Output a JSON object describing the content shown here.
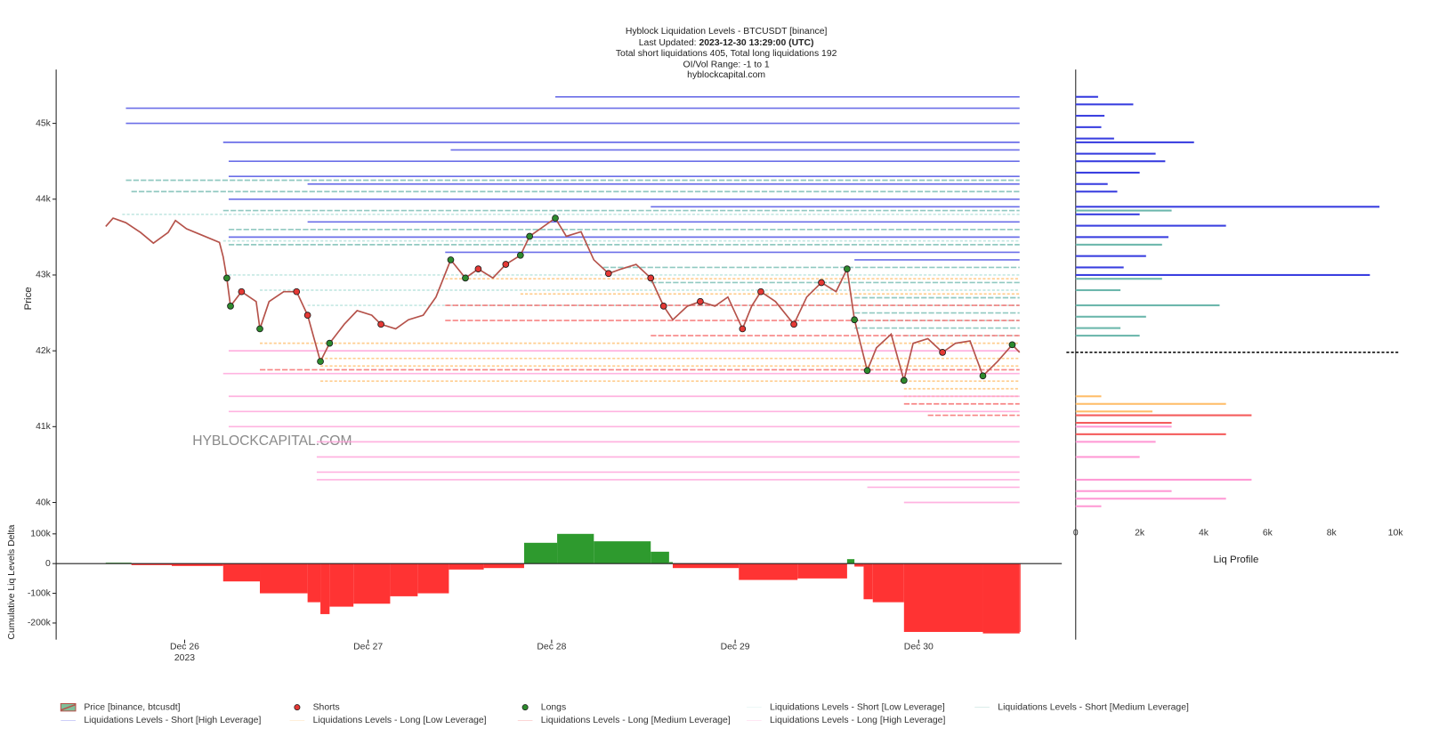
{
  "chart_data": [
    {
      "type": "liquidation",
      "title": "Hyblock Liquidation Levels - BTCUSDT [binance]",
      "updated_label": "Last Updated:",
      "updated": "2023-12-30 13:29:00 (UTC)",
      "subtitle": "Total short liquidations 405, Total long liquidations 192",
      "range_note": "OI/Vol Range: -1 to 1",
      "source": "hyblockcapital.com",
      "watermark": "HYBLOCKCAPITAL.COM",
      "y_label": "Price",
      "xlim": [
        25.3,
        30.78
      ],
      "xticks": [
        {
          "value": 26,
          "label": "Dec 26"
        },
        {
          "value": 27,
          "label": "Dec 27"
        },
        {
          "value": 28,
          "label": "Dec 28"
        },
        {
          "value": 29,
          "label": "Dec 29"
        },
        {
          "value": 30,
          "label": "Dec 30"
        }
      ],
      "xtick_sublabel": "2023",
      "ylim": [
        39780,
        45710
      ],
      "yticks": [
        {
          "value": 40000,
          "label": "40k"
        },
        {
          "value": 41000,
          "label": "41k"
        },
        {
          "value": 42000,
          "label": "42k"
        },
        {
          "value": 43000,
          "label": "43k"
        },
        {
          "value": 44000,
          "label": "44k"
        },
        {
          "value": 45000,
          "label": "45k"
        }
      ],
      "series": [
        {
          "name": "Price [binance, btcusdt]",
          "color": "#b5524a",
          "x": [
            25.57,
            25.61,
            25.68,
            25.76,
            25.83,
            25.91,
            25.95,
            26.01,
            26.09,
            26.19,
            26.21,
            26.23,
            26.25,
            26.31,
            26.39,
            26.41,
            26.46,
            26.54,
            26.61,
            26.67,
            26.74,
            26.79,
            26.87,
            26.94,
            27.02,
            27.07,
            27.15,
            27.22,
            27.3,
            27.37,
            27.45,
            27.53,
            27.6,
            27.68,
            27.75,
            27.83,
            27.88,
            27.95,
            28.02,
            28.08,
            28.16,
            28.23,
            28.31,
            28.38,
            28.46,
            28.54,
            28.61,
            28.66,
            28.74,
            28.81,
            28.89,
            28.96,
            29.04,
            29.09,
            29.14,
            29.22,
            29.32,
            29.39,
            29.47,
            29.55,
            29.61,
            29.65,
            29.72,
            29.77,
            29.85,
            29.92,
            29.97,
            30.05,
            30.13,
            30.2,
            30.28,
            30.35,
            30.43,
            30.51,
            30.55
          ],
          "values": [
            43640,
            43750,
            43690,
            43560,
            43420,
            43560,
            43720,
            43610,
            43530,
            43430,
            43240,
            42960,
            42590,
            42780,
            42650,
            42290,
            42650,
            42780,
            42780,
            42470,
            41860,
            42100,
            42350,
            42530,
            42470,
            42350,
            42290,
            42410,
            42470,
            42710,
            43200,
            42960,
            43080,
            42960,
            43140,
            43260,
            43510,
            43630,
            43750,
            43510,
            43570,
            43200,
            43020,
            43080,
            43140,
            42960,
            42590,
            42410,
            42590,
            42650,
            42590,
            42710,
            42290,
            42590,
            42780,
            42650,
            42350,
            42710,
            42900,
            42780,
            43080,
            42410,
            41740,
            42040,
            42220,
            41610,
            42100,
            42160,
            41980,
            42100,
            42130,
            41670,
            41860,
            42080,
            41980
          ]
        },
        {
          "name": "Shorts",
          "color": "#e53935",
          "x": [
            26.31,
            26.61,
            26.67,
            27.07,
            27.6,
            27.75,
            28.31,
            28.54,
            28.61,
            28.81,
            29.04,
            29.14,
            29.32,
            29.47,
            30.13
          ],
          "values": [
            42780,
            42780,
            42470,
            42350,
            43080,
            43140,
            43020,
            42960,
            42590,
            42650,
            42290,
            42780,
            42350,
            42900,
            41980
          ]
        },
        {
          "name": "Longs",
          "color": "#2e8b2e",
          "x": [
            26.23,
            26.25,
            26.41,
            26.74,
            26.79,
            27.45,
            27.53,
            27.83,
            27.88,
            28.02,
            29.61,
            29.65,
            29.72,
            29.92,
            30.35,
            30.51
          ],
          "values": [
            42960,
            42590,
            42290,
            41860,
            42100,
            43200,
            42960,
            43260,
            43510,
            43750,
            43080,
            42410,
            41740,
            41610,
            41670,
            42080
          ]
        },
        {
          "name": "Liquidations Levels - Short [Low Leverage]",
          "color": "#b2e0da",
          "x": [
            25.66,
            26.21,
            26.24,
            26.41,
            26.67,
            29.65,
            29.92
          ],
          "values": [
            43800,
            43450,
            43000,
            42800,
            42600,
            42400,
            42200
          ]
        },
        {
          "name": "Liquidations Levels - Short [Medium Leverage]",
          "color": "#6cb7ac",
          "x": [
            25.68,
            25.71,
            26.21,
            26.24,
            26.24,
            28.28,
            28.54,
            29.65,
            29.65,
            29.65
          ],
          "values": [
            44250,
            44100,
            43850,
            43600,
            43400,
            43100,
            42900,
            42700,
            42500,
            42300
          ]
        },
        {
          "name": "Liquidations Levels - Short [High Leverage]",
          "color": "#3a3fe0",
          "x": [
            28.02,
            25.68,
            25.68,
            26.21,
            27.45,
            26.24,
            26.24,
            26.67,
            26.24,
            28.54,
            26.67,
            26.24,
            27.42,
            29.65
          ],
          "values": [
            45350,
            45200,
            45000,
            44750,
            44650,
            44500,
            44300,
            44200,
            44000,
            43900,
            43700,
            43500,
            43300,
            43200
          ]
        },
        {
          "name": "Liquidations Levels - Long [Low Leverage]",
          "color": "#ffbe6b",
          "x": [
            27.42,
            27.83,
            26.41,
            26.74,
            26.74,
            26.74,
            29.92,
            29.92
          ],
          "values": [
            42950,
            42750,
            42100,
            41900,
            41800,
            41600,
            41500,
            41400
          ]
        },
        {
          "name": "Liquidations Levels - Long [Medium Leverage]",
          "color": "#f45b5b",
          "x": [
            27.42,
            27.42,
            28.54,
            26.41,
            29.92,
            30.05
          ],
          "values": [
            42600,
            42400,
            42200,
            41750,
            41300,
            41150
          ]
        },
        {
          "name": "Liquidations Levels - Long [High Leverage]",
          "color": "#ff9ad5",
          "x": [
            26.24,
            26.21,
            26.24,
            26.24,
            26.24,
            26.72,
            26.72,
            26.72,
            26.72,
            29.72,
            29.92
          ],
          "values": [
            42000,
            41700,
            41400,
            41200,
            41000,
            40800,
            40600,
            40400,
            40300,
            40200,
            40000
          ]
        }
      ]
    },
    {
      "type": "delta",
      "y_label": "Cumulative Liq Levels Delta",
      "ylim": [
        -256000,
        134000
      ],
      "yticks": [
        {
          "value": -200000,
          "label": "-200k"
        },
        {
          "value": -100000,
          "label": "-100k"
        },
        0,
        {
          "value": 100000,
          "label": "100k"
        }
      ],
      "positive_color": "#2e9a2e",
      "negative_color": "#ff3333",
      "x": [
        25.57,
        25.71,
        25.93,
        26.21,
        26.41,
        26.67,
        26.74,
        26.79,
        26.92,
        27.12,
        27.27,
        27.44,
        27.63,
        27.85,
        28.03,
        28.23,
        28.54,
        28.64,
        28.66,
        29.02,
        29.34,
        29.61,
        29.65,
        29.7,
        29.75,
        29.92,
        30.35,
        30.55
      ],
      "values": [
        3000,
        -5000,
        -8000,
        -60000,
        -100000,
        -130000,
        -170000,
        -145000,
        -135000,
        -110000,
        -100000,
        -20000,
        -15000,
        70000,
        100000,
        75000,
        40000,
        5000,
        -15000,
        -55000,
        -50000,
        15000,
        -10000,
        -120000,
        -130000,
        -230000,
        -235000,
        -230000
      ]
    },
    {
      "type": "profile",
      "x_label": "Liq Profile",
      "xlim": [
        0,
        10290
      ],
      "xticks": [
        0,
        {
          "value": 2000,
          "label": "2k"
        },
        {
          "value": 4000,
          "label": "4k"
        },
        {
          "value": 6000,
          "label": "6k"
        },
        {
          "value": 8000,
          "label": "8k"
        },
        {
          "value": 10000,
          "label": "10k"
        }
      ],
      "series": [
        {
          "color": "#3a3fe0",
          "y": [
            45350,
            45250,
            45100,
            44950,
            44800,
            44750,
            44600,
            44500,
            44350,
            44200,
            44100,
            43900,
            43800,
            43650,
            43500,
            43250,
            43100,
            43000
          ],
          "values": [
            700,
            1800,
            900,
            800,
            1200,
            3700,
            2500,
            2800,
            2000,
            1000,
            1300,
            9500,
            2000,
            4700,
            2900,
            2200,
            1500,
            9200
          ]
        },
        {
          "color": "#6cb7ac",
          "y": [
            43850,
            43400,
            42950,
            42800,
            42600,
            42450,
            42300,
            42200
          ],
          "values": [
            3000,
            2700,
            2700,
            1400,
            4500,
            2200,
            1400,
            2000
          ]
        },
        {
          "color": "#ffbe6b",
          "y": [
            41400,
            41300,
            41200
          ],
          "values": [
            800,
            4700,
            2400
          ]
        },
        {
          "color": "#f45b5b",
          "y": [
            41150,
            41050,
            40900
          ],
          "values": [
            5500,
            3000,
            4700
          ]
        },
        {
          "color": "#ff9ad5",
          "y": [
            41000,
            40800,
            40600,
            40300,
            40150,
            40050,
            39950
          ],
          "values": [
            3000,
            2500,
            2000,
            5500,
            3000,
            4700,
            800
          ]
        }
      ]
    }
  ]
}
